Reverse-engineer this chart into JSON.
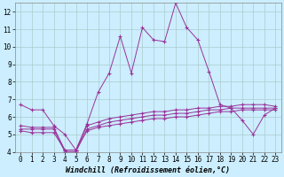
{
  "xlabel": "Windchill (Refroidissement éolien,°C)",
  "background_color": "#cceeff",
  "grid_color": "#aacccc",
  "line_color": "#993399",
  "xlim": [
    -0.5,
    23.5
  ],
  "ylim": [
    4,
    12.5
  ],
  "yticks": [
    4,
    5,
    6,
    7,
    8,
    9,
    10,
    11,
    12
  ],
  "xticks": [
    0,
    1,
    2,
    3,
    4,
    5,
    6,
    7,
    8,
    9,
    10,
    11,
    12,
    13,
    14,
    15,
    16,
    17,
    18,
    19,
    20,
    21,
    22,
    23
  ],
  "series1_x": [
    0,
    1,
    2,
    3,
    4,
    5,
    6,
    7,
    8,
    9,
    10,
    11,
    12,
    13,
    14,
    15,
    16,
    17,
    18,
    19,
    20,
    21,
    22,
    23
  ],
  "series1_y": [
    6.7,
    6.4,
    6.4,
    5.5,
    5.0,
    4.1,
    5.6,
    7.4,
    8.5,
    10.6,
    8.5,
    11.1,
    10.4,
    10.3,
    12.5,
    11.1,
    10.4,
    8.6,
    6.7,
    6.5,
    5.8,
    5.0,
    6.1,
    6.5
  ],
  "series2_x": [
    0,
    1,
    2,
    3,
    4,
    5,
    6,
    7,
    8,
    9,
    10,
    11,
    12,
    13,
    14,
    15,
    16,
    17,
    18,
    19,
    20,
    21,
    22,
    23
  ],
  "series2_y": [
    5.5,
    5.4,
    5.4,
    5.4,
    4.1,
    4.1,
    5.5,
    5.7,
    5.9,
    6.0,
    6.1,
    6.2,
    6.3,
    6.3,
    6.4,
    6.4,
    6.5,
    6.5,
    6.6,
    6.6,
    6.7,
    6.7,
    6.7,
    6.6
  ],
  "series3_x": [
    0,
    1,
    2,
    3,
    4,
    5,
    6,
    7,
    8,
    9,
    10,
    11,
    12,
    13,
    14,
    15,
    16,
    17,
    18,
    19,
    20,
    21,
    22,
    23
  ],
  "series3_y": [
    5.3,
    5.3,
    5.3,
    5.3,
    4.0,
    4.0,
    5.3,
    5.5,
    5.7,
    5.8,
    5.9,
    6.0,
    6.1,
    6.1,
    6.2,
    6.2,
    6.3,
    6.4,
    6.4,
    6.5,
    6.5,
    6.5,
    6.5,
    6.5
  ],
  "series4_x": [
    0,
    1,
    2,
    3,
    4,
    5,
    6,
    7,
    8,
    9,
    10,
    11,
    12,
    13,
    14,
    15,
    16,
    17,
    18,
    19,
    20,
    21,
    22,
    23
  ],
  "series4_y": [
    5.2,
    5.1,
    5.1,
    5.1,
    4.1,
    4.1,
    5.2,
    5.4,
    5.5,
    5.6,
    5.7,
    5.8,
    5.9,
    5.9,
    6.0,
    6.0,
    6.1,
    6.2,
    6.3,
    6.3,
    6.4,
    6.4,
    6.4,
    6.4
  ]
}
